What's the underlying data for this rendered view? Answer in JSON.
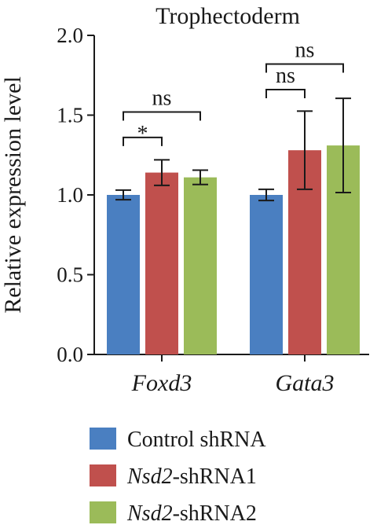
{
  "chart_data": {
    "type": "bar",
    "title": "Trophectoderm",
    "ylabel": "Relative expression level",
    "xlabel": "",
    "ylim": [
      0,
      2.0
    ],
    "yticks": [
      "0.0",
      "0.5",
      "1.0",
      "1.5",
      "2.0"
    ],
    "categories": [
      "Foxd3",
      "Gata3"
    ],
    "series": [
      {
        "name": "Control shRNA",
        "name_italic": "",
        "name_rest": "Control shRNA",
        "color": "#4a7fc1",
        "values": [
          1.0,
          1.0
        ],
        "errors": [
          0.03,
          0.035
        ]
      },
      {
        "name": "Nsd2-shRNA1",
        "name_italic": "Nsd2",
        "name_rest": "-shRNA1",
        "color": "#c0504d",
        "values": [
          1.14,
          1.28
        ],
        "errors": [
          0.08,
          0.245
        ]
      },
      {
        "name": "Nsd2-shRNA2",
        "name_italic": "Nsd2",
        "name_rest": "-shRNA2",
        "color": "#9bbb59",
        "values": [
          1.11,
          1.31
        ],
        "errors": [
          0.045,
          0.295
        ]
      }
    ],
    "annotations": [
      {
        "category": 0,
        "from": 0,
        "to": 1,
        "text": "*",
        "y": 1.36
      },
      {
        "category": 0,
        "from": 0,
        "to": 2,
        "text": "ns",
        "y": 1.52
      },
      {
        "category": 1,
        "from": 0,
        "to": 1,
        "text": "ns",
        "y": 1.66
      },
      {
        "category": 1,
        "from": 0,
        "to": 2,
        "text": "ns",
        "y": 1.82
      }
    ],
    "grid": false,
    "legend_position": "bottom"
  }
}
